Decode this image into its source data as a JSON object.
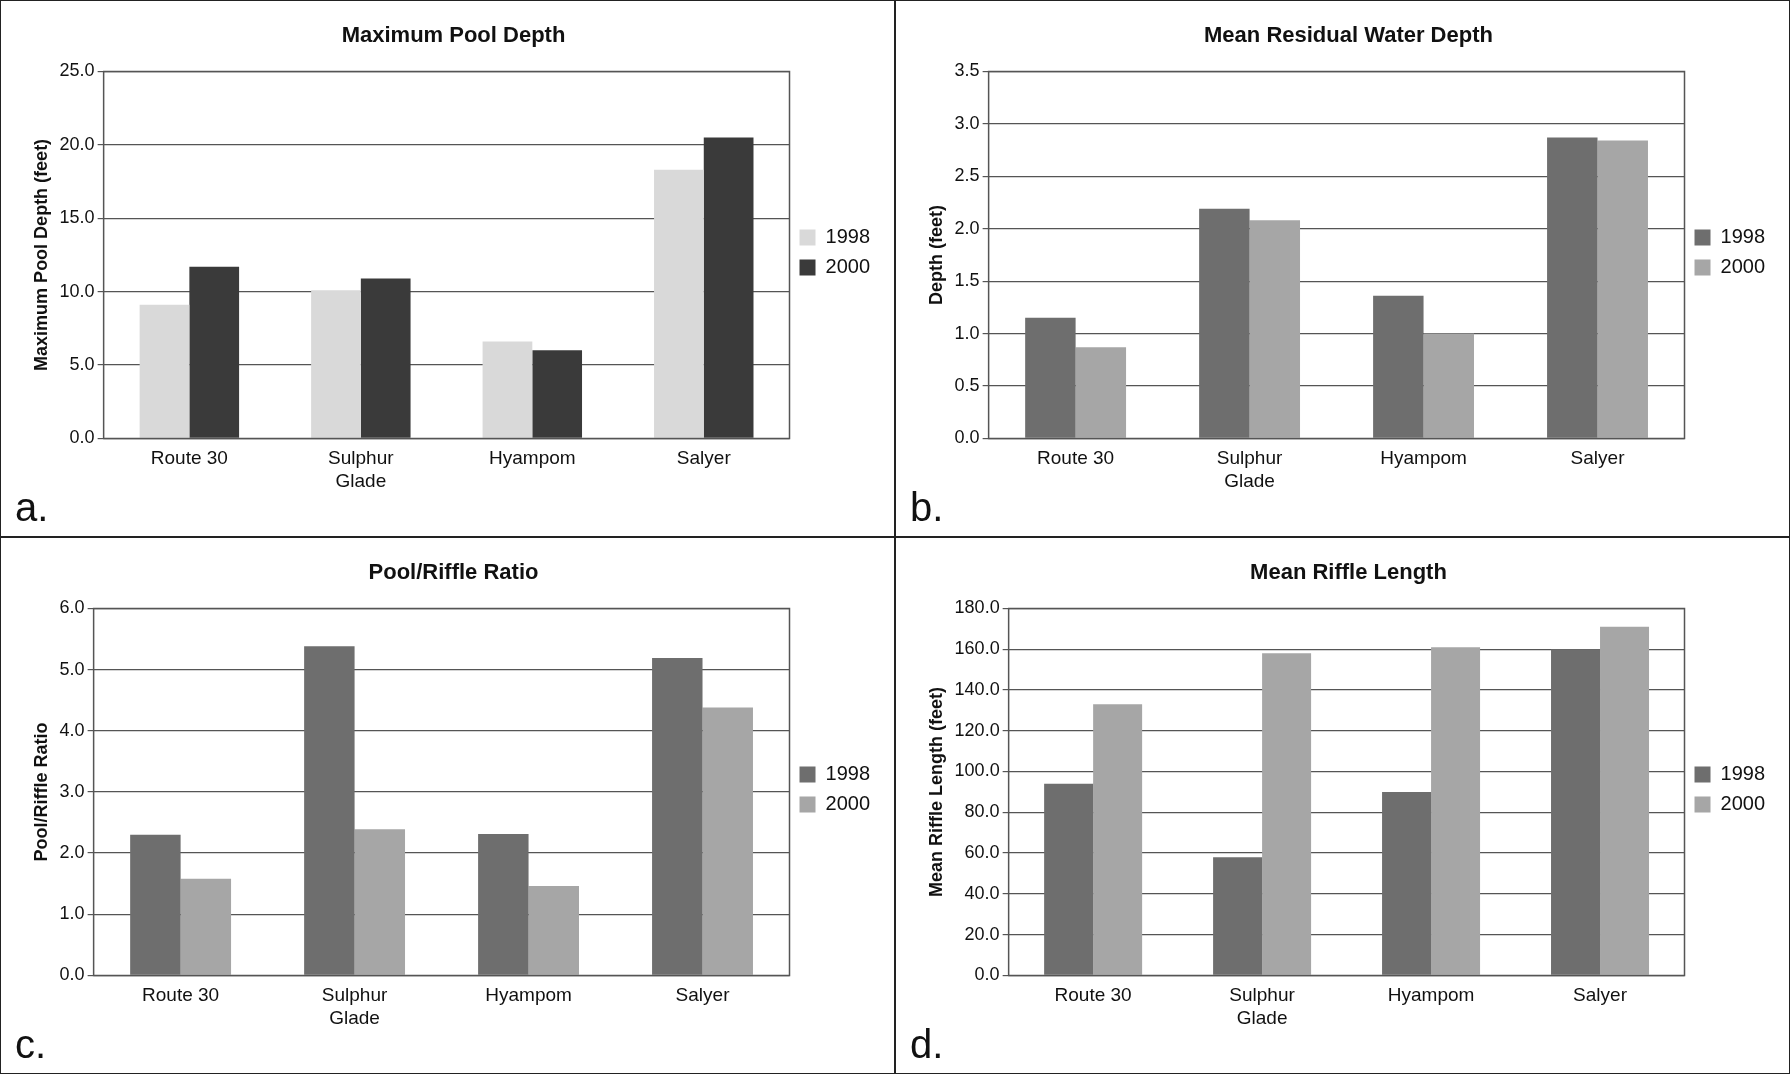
{
  "chart_data": [
    {
      "type": "bar",
      "title": "Maximum Pool Depth",
      "ylabel": "Maximum Pool Depth (feet)",
      "categories": [
        "Route 30",
        "Sulphur Glade",
        "Hyampom",
        "Salyer"
      ],
      "series": [
        {
          "name": "1998",
          "color": "#d9d9d9",
          "values": [
            9.1,
            10.1,
            6.6,
            18.3
          ]
        },
        {
          "name": "2000",
          "color": "#3a3a3a",
          "values": [
            11.7,
            10.9,
            6.0,
            20.5
          ]
        }
      ],
      "ylim": [
        0,
        25
      ],
      "yticks": [
        {
          "value": 0,
          "label": "0.0"
        },
        {
          "value": 5,
          "label": "5.0"
        },
        {
          "value": 10,
          "label": "10.0"
        },
        {
          "value": 15,
          "label": "15.0"
        },
        {
          "value": 20,
          "label": "20.0"
        },
        {
          "value": 25,
          "label": "25.0"
        }
      ],
      "grid": "y",
      "legend": "right",
      "annotations": [
        "a."
      ]
    },
    {
      "type": "bar",
      "title": "Mean Residual Water Depth",
      "ylabel": "Depth (feet)",
      "categories": [
        "Route 30",
        "Sulphur Glade",
        "Hyampom",
        "Salyer"
      ],
      "series": [
        {
          "name": "1998",
          "color": "#6e6e6e",
          "values": [
            1.15,
            2.19,
            1.36,
            2.87
          ]
        },
        {
          "name": "2000",
          "color": "#a6a6a6",
          "values": [
            0.87,
            2.08,
            1.0,
            2.84
          ]
        }
      ],
      "ylim": [
        0,
        3.5
      ],
      "yticks": [
        {
          "value": 0,
          "label": "0.0"
        },
        {
          "value": 0.5,
          "label": "0.5"
        },
        {
          "value": 1,
          "label": "1.0"
        },
        {
          "value": 1.5,
          "label": "1.5"
        },
        {
          "value": 2,
          "label": "2.0"
        },
        {
          "value": 2.5,
          "label": "2.5"
        },
        {
          "value": 3,
          "label": "3.0"
        },
        {
          "value": 3.5,
          "label": "3.5"
        }
      ],
      "grid": "y",
      "legend": "right",
      "annotations": [
        "b."
      ]
    },
    {
      "type": "bar",
      "title": "Pool/Riffle Ratio",
      "ylabel": "Pool/Riffle Ratio",
      "categories": [
        "Route 30",
        "Sulphur Glade",
        "Hyampom",
        "Salyer"
      ],
      "series": [
        {
          "name": "1998",
          "color": "#6e6e6e",
          "values": [
            2.3,
            5.38,
            2.31,
            5.19
          ]
        },
        {
          "name": "2000",
          "color": "#a6a6a6",
          "values": [
            1.58,
            2.39,
            1.46,
            4.38
          ]
        }
      ],
      "ylim": [
        0,
        6
      ],
      "yticks": [
        {
          "value": 0,
          "label": "0.0"
        },
        {
          "value": 1,
          "label": "1.0"
        },
        {
          "value": 2,
          "label": "2.0"
        },
        {
          "value": 3,
          "label": "3.0"
        },
        {
          "value": 4,
          "label": "4.0"
        },
        {
          "value": 5,
          "label": "5.0"
        },
        {
          "value": 6,
          "label": "6.0"
        }
      ],
      "grid": "y",
      "legend": "right",
      "annotations": [
        "c."
      ]
    },
    {
      "type": "bar",
      "title": "Mean Riffle Length",
      "ylabel": "Mean Riffle Length (feet)",
      "categories": [
        "Route 30",
        "Sulphur Glade",
        "Hyampom",
        "Salyer"
      ],
      "series": [
        {
          "name": "1998",
          "color": "#6e6e6e",
          "values": [
            94,
            58,
            90,
            160
          ]
        },
        {
          "name": "2000",
          "color": "#a6a6a6",
          "values": [
            133,
            158,
            161,
            171
          ]
        }
      ],
      "ylim": [
        0,
        180
      ],
      "yticks": [
        {
          "value": 0,
          "label": "0.0"
        },
        {
          "value": 20,
          "label": "20.0"
        },
        {
          "value": 40,
          "label": "40.0"
        },
        {
          "value": 60,
          "label": "60.0"
        },
        {
          "value": 80,
          "label": "80.0"
        },
        {
          "value": 100,
          "label": "100.0"
        },
        {
          "value": 120,
          "label": "120.0"
        },
        {
          "value": 140,
          "label": "140.0"
        },
        {
          "value": 160,
          "label": "160.0"
        },
        {
          "value": 180,
          "label": "180.0"
        }
      ],
      "grid": "y",
      "legend": "right",
      "annotations": [
        "d."
      ]
    }
  ]
}
